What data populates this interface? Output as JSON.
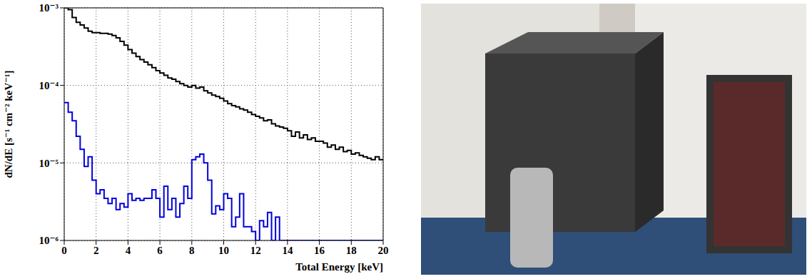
{
  "chart_data": {
    "type": "histogram",
    "x_label": "Total Energy [keV]",
    "y_label": "dN/dE  [s⁻¹ cm⁻² keV⁻¹]",
    "log": "y",
    "grid": true,
    "xlim": [
      0,
      20
    ],
    "xticks": [
      0,
      2,
      4,
      6,
      8,
      10,
      12,
      14,
      16,
      18,
      20
    ],
    "ylim": [
      1e-06,
      0.001
    ],
    "yticks": [
      {
        "value": 1e-06,
        "label": "10⁻⁶"
      },
      {
        "value": 1e-05,
        "label": "10⁻⁵"
      },
      {
        "value": 0.0001,
        "label": "10⁻⁴"
      },
      {
        "value": 0.001,
        "label": "10⁻³"
      }
    ],
    "bins": [
      0,
      0.25,
      0.5,
      0.75,
      1,
      1.25,
      1.5,
      1.75,
      2,
      2.25,
      2.5,
      2.75,
      3,
      3.25,
      3.5,
      3.75,
      4,
      4.25,
      4.5,
      4.75,
      5,
      5.25,
      5.5,
      5.75,
      6,
      6.25,
      6.5,
      6.75,
      7,
      7.25,
      7.5,
      7.75,
      8,
      8.25,
      8.5,
      8.75,
      9,
      9.25,
      9.5,
      9.75,
      10,
      10.25,
      10.5,
      10.75,
      11,
      11.25,
      11.5,
      11.75,
      12,
      12.25,
      12.5,
      12.75,
      13,
      13.25,
      13.5,
      13.75,
      14,
      14.25,
      14.5,
      14.75,
      15,
      15.25,
      15.5,
      15.75,
      16,
      16.25,
      16.5,
      16.75,
      17,
      17.25,
      17.5,
      17.75,
      18,
      18.25,
      18.5,
      18.75,
      19,
      19.25,
      19.5,
      19.75,
      20
    ],
    "series": [
      {
        "color": "#000000",
        "values": [
          0.001,
          0.00095,
          0.00075,
          0.00065,
          0.0006,
          0.00055,
          0.0005,
          0.00048,
          0.00048,
          0.00047,
          0.00047,
          0.00046,
          0.00044,
          0.00041,
          0.00037,
          0.00033,
          0.00029,
          0.00026,
          0.000235,
          0.000215,
          0.0002,
          0.000185,
          0.00017,
          0.000155,
          0.000145,
          0.000135,
          0.000125,
          0.00012,
          0.000112,
          0.000105,
          0.0001,
          9.5e-05,
          0.0001,
          9.2e-05,
          9.5e-05,
          8.5e-05,
          8e-05,
          7.5e-05,
          7.2e-05,
          6.8e-05,
          6.3e-05,
          5.8e-05,
          5.5e-05,
          5.3e-05,
          5e-05,
          4.8e-05,
          4.5e-05,
          4.2e-05,
          4e-05,
          3.8e-05,
          3.5e-05,
          3.6e-05,
          3.2e-05,
          3e-05,
          2.9e-05,
          2.8e-05,
          2.6e-05,
          2.2e-05,
          2.5e-05,
          2.1e-05,
          2.3e-05,
          2e-05,
          2.1e-05,
          1.9e-05,
          1.9e-05,
          1.8e-05,
          1.6e-05,
          1.7e-05,
          1.5e-05,
          1.6e-05,
          1.4e-05,
          1.45e-05,
          1.3e-05,
          1.35e-05,
          1.25e-05,
          1.2e-05,
          1.15e-05,
          1.1e-05,
          1.2e-05,
          1.1e-05
        ]
      },
      {
        "color": "#0000dd",
        "values": [
          6e-05,
          4.5e-05,
          3.5e-05,
          2.2e-05,
          1.5e-05,
          9e-06,
          1.2e-05,
          6e-06,
          4e-06,
          4.5e-06,
          3.5e-06,
          3e-06,
          3.5e-06,
          2.5e-06,
          3e-06,
          2.7e-06,
          4e-06,
          3.3e-06,
          3.5e-06,
          3.3e-06,
          3.5e-06,
          3.5e-06,
          4.5e-06,
          3.5e-06,
          2e-06,
          5e-06,
          2.5e-06,
          3.5e-06,
          2e-06,
          3e-06,
          5e-06,
          3.5e-06,
          1.1e-05,
          1.2e-05,
          1.3e-05,
          1e-05,
          6e-06,
          2.2e-06,
          2.8e-06,
          2.5e-06,
          4e-06,
          3.5e-06,
          1.5e-06,
          2e-06,
          4e-06,
          1.5e-06,
          1.5e-06,
          1.3e-06,
          1e-06,
          1.8e-06,
          1.5e-06,
          2.3e-06,
          1e-06,
          2e-06,
          1e-06,
          1e-06,
          1e-06,
          1e-06,
          1e-06,
          1e-06,
          1e-06,
          1e-06,
          1e-06,
          1e-06,
          1e-06,
          1e-06,
          1e-06,
          1e-06,
          1e-06,
          1e-06,
          1e-06,
          1e-06,
          1e-06,
          1e-06,
          1e-06,
          1e-06,
          1e-06,
          1e-06,
          1e-06,
          1e-06
        ]
      }
    ]
  }
}
